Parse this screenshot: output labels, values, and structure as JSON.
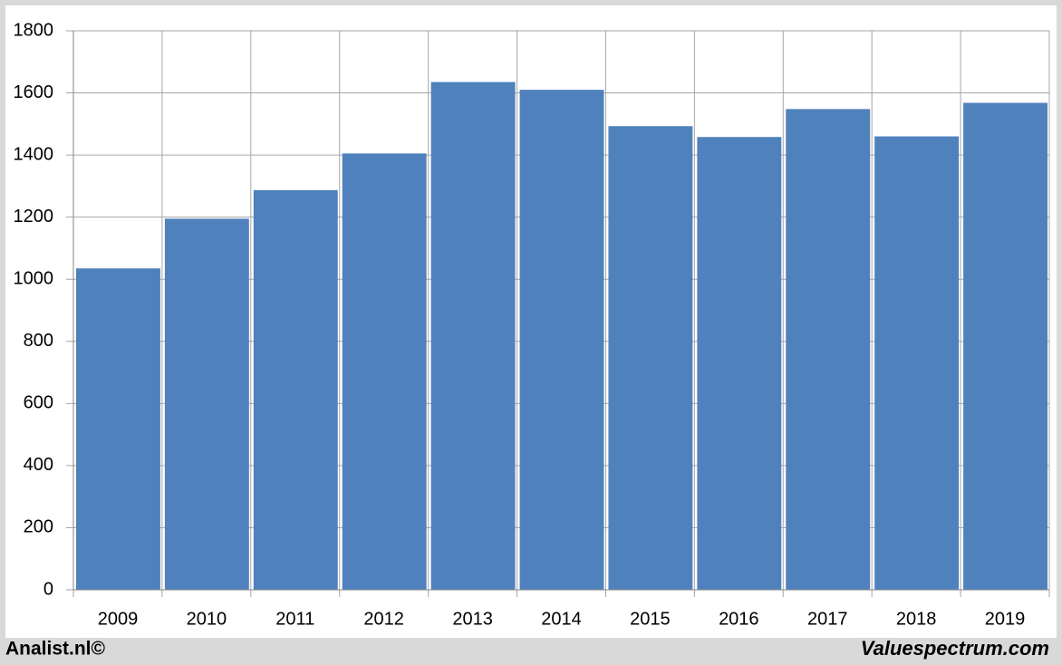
{
  "chart_data": {
    "type": "bar",
    "categories": [
      "2009",
      "2010",
      "2011",
      "2012",
      "2013",
      "2014",
      "2015",
      "2016",
      "2017",
      "2018",
      "2019"
    ],
    "values": [
      1035,
      1195,
      1287,
      1405,
      1635,
      1610,
      1493,
      1458,
      1548,
      1460,
      1568
    ],
    "color": "#4f81bd",
    "ylim": [
      0,
      1800
    ],
    "yticks": [
      0,
      200,
      400,
      600,
      800,
      1000,
      1200,
      1400,
      1600,
      1800
    ],
    "grid": true,
    "source_left": "Analist.nl©",
    "source_right": "Valuespectrum.com"
  }
}
